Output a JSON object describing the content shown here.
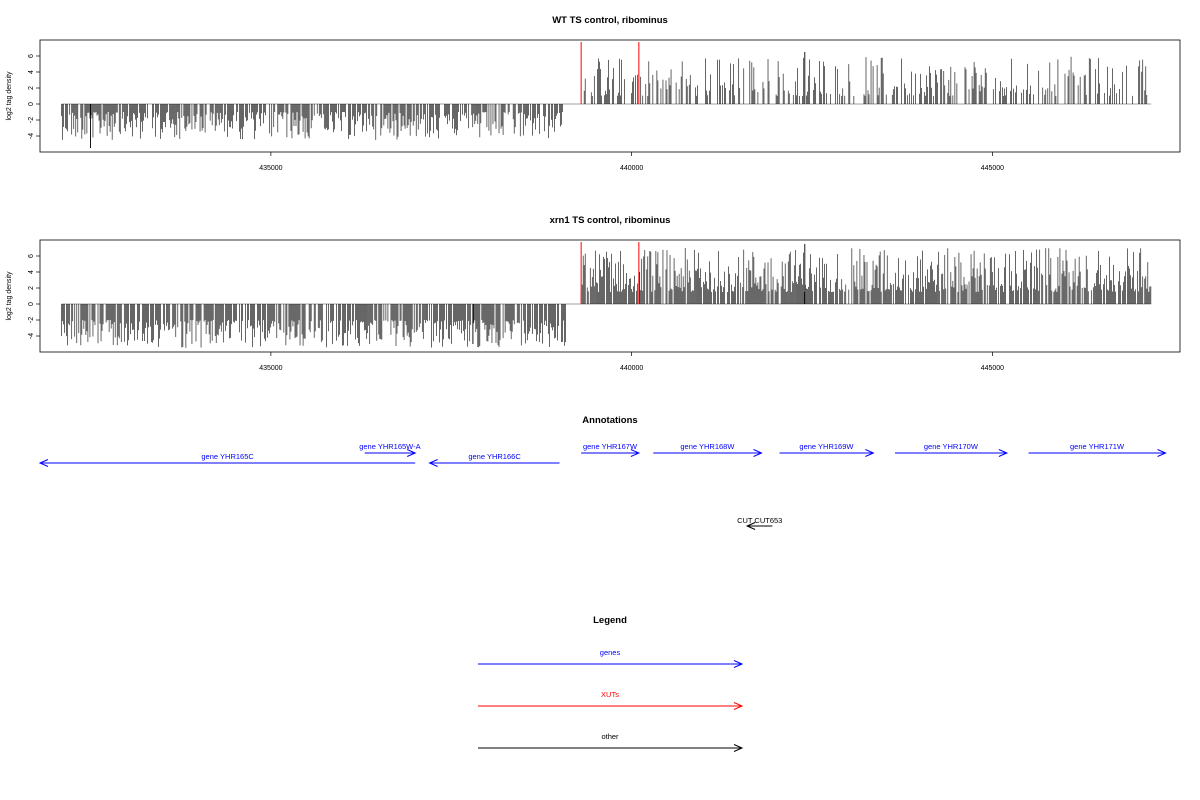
{
  "chart_data": [
    {
      "type": "bar",
      "title": "WT TS control, ribominus",
      "ylabel": "log2 tag density",
      "xticks": [
        435000,
        440000,
        445000
      ],
      "xlim": [
        431800,
        447600
      ],
      "ylim": [
        -6,
        8
      ],
      "yticks": [
        -4,
        -2,
        0,
        2,
        4,
        6
      ],
      "red_markers": [
        439300,
        440100
      ],
      "series": [
        {
          "strand": "minus",
          "x_start": 432100,
          "x_end": 439100,
          "amplitude": [
            1.0,
            4.5
          ],
          "peak": {
            "x": 432500,
            "y": -5.5
          }
        },
        {
          "strand": "plus",
          "x_start": 439300,
          "x_end": 447200,
          "amplitude": [
            1.0,
            6.0
          ],
          "peak": {
            "x": 442400,
            "y": 6.5
          }
        }
      ]
    },
    {
      "type": "bar",
      "title": "xrn1 TS control, ribominus",
      "ylabel": "log2 tag density",
      "xticks": [
        435000,
        440000,
        445000
      ],
      "xlim": [
        431800,
        447600
      ],
      "ylim": [
        -6,
        8
      ],
      "yticks": [
        -4,
        -2,
        0,
        2,
        4,
        6
      ],
      "red_markers": [
        439300,
        440100
      ],
      "series": [
        {
          "strand": "minus",
          "x_start": 432100,
          "x_end": 439100,
          "amplitude": [
            2.0,
            5.5
          ],
          "peak": {
            "x": 437800,
            "y": -5.0
          }
        },
        {
          "strand": "plus",
          "x_start": 439300,
          "x_end": 447200,
          "amplitude": [
            1.5,
            7.0
          ],
          "peak": {
            "x": 442400,
            "y": 7.5
          }
        }
      ]
    }
  ],
  "annotations": {
    "title": "Annotations",
    "genes": [
      {
        "label": "gene YHR165C",
        "start": 431800,
        "end": 437000,
        "dir": -1,
        "row": 1
      },
      {
        "label": "gene YHR165W-A",
        "start": 436300,
        "end": 437000,
        "dir": 1,
        "row": 0
      },
      {
        "label": "gene YHR166C",
        "start": 437200,
        "end": 439000,
        "dir": -1,
        "row": 1
      },
      {
        "label": "gene YHR167W",
        "start": 439300,
        "end": 440100,
        "dir": 1,
        "row": 0
      },
      {
        "label": "gene YHR168W",
        "start": 440300,
        "end": 441800,
        "dir": 1,
        "row": 0
      },
      {
        "label": "gene YHR169W",
        "start": 442050,
        "end": 443350,
        "dir": 1,
        "row": 0
      },
      {
        "label": "gene YHR170W",
        "start": 443650,
        "end": 445200,
        "dir": 1,
        "row": 0
      },
      {
        "label": "gene YHR171W",
        "start": 445500,
        "end": 447400,
        "dir": 1,
        "row": 0
      }
    ],
    "other": [
      {
        "label": "CUT CUT653",
        "start": 441600,
        "end": 441950,
        "dir": -1
      }
    ]
  },
  "legend": {
    "title": "Legend",
    "items": [
      {
        "label": "genes",
        "color": "#0000ff"
      },
      {
        "label": "XUTs",
        "color": "#ff0000"
      },
      {
        "label": "other",
        "color": "#000000"
      }
    ]
  },
  "colors": {
    "gene": "#0000ff",
    "xut": "#ff0000",
    "other": "#000000",
    "baseline": "#808080"
  }
}
